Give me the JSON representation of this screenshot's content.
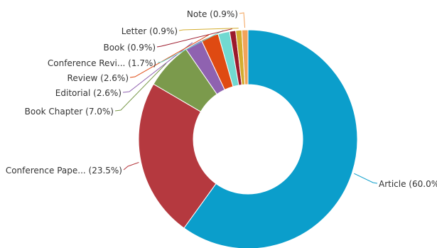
{
  "chart_data": {
    "type": "pie",
    "variant": "donut",
    "legend": "none",
    "slices": [
      {
        "label": "Article",
        "value": 60.0,
        "display": "Article (60.0%)",
        "color": "#0b9ecb"
      },
      {
        "label": "Conference Pape...",
        "value": 23.5,
        "display": "Conference Pape... (23.5%)",
        "color": "#b5393f"
      },
      {
        "label": "Book Chapter",
        "value": 7.0,
        "display": "Book Chapter (7.0%)",
        "color": "#7b9a4c"
      },
      {
        "label": "Editorial",
        "value": 2.6,
        "display": "Editorial (2.6%)",
        "color": "#8f62b0"
      },
      {
        "label": "Review",
        "value": 2.6,
        "display": "Review (2.6%)",
        "color": "#df4a12"
      },
      {
        "label": "Conference Revi...",
        "value": 1.7,
        "display": "Conference Revi... (1.7%)",
        "color": "#71d9d1"
      },
      {
        "label": "Book",
        "value": 0.9,
        "display": "Book (0.9%)",
        "color": "#9c1a2c"
      },
      {
        "label": "Letter",
        "value": 0.9,
        "display": "Letter (0.9%)",
        "color": "#d4ad2f"
      },
      {
        "label": "Note",
        "value": 0.9,
        "display": "Note (0.9%)",
        "color": "#f2a35a"
      }
    ]
  }
}
